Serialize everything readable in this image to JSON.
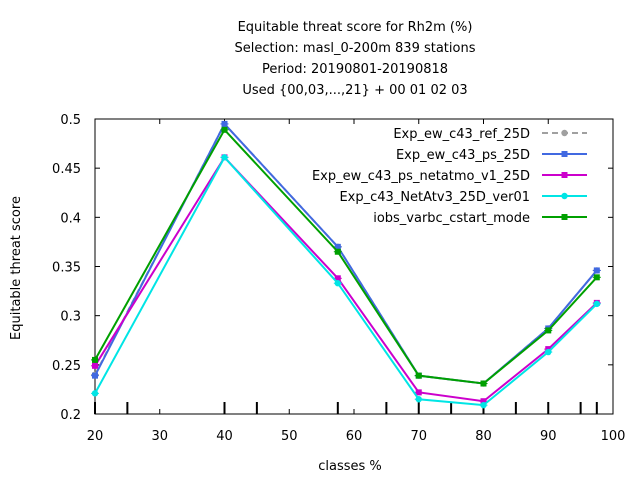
{
  "chart_data": {
    "type": "line",
    "title": "Equitable threat score  for Rh2m (%)",
    "subtitle_lines": [
      "Selection: masl_0-200m    839 stations",
      "Period: 20190801-20190818",
      "Used {00,03,...,21} + 00 01 02 03"
    ],
    "xlabel": "classes %",
    "ylabel": "Equitable threat score",
    "xlim": [
      20,
      100
    ],
    "ylim": [
      0.2,
      0.5
    ],
    "x_ticks": [
      "20",
      "30",
      "40",
      "50",
      "60",
      "70",
      "80",
      "90",
      "100"
    ],
    "y_ticks": [
      "0.2",
      "0.25",
      "0.3",
      "0.35",
      "0.4",
      "0.45",
      "0.5"
    ],
    "legend_position": "top-right",
    "x": [
      20,
      40,
      57.5,
      70,
      80,
      90,
      97.5
    ],
    "series": [
      {
        "name": "Exp_ew_c43_ref_25D",
        "color": "#a0a0a0",
        "dashed": true,
        "marker": "circle",
        "values": [
          0.24,
          0.495,
          0.37,
          0.239,
          0.231,
          0.287,
          0.346
        ]
      },
      {
        "name": "Exp_ew_c43_ps_25D",
        "color": "#4169e1",
        "dashed": false,
        "marker": "square",
        "values": [
          0.239,
          0.495,
          0.37,
          0.239,
          0.231,
          0.287,
          0.346
        ]
      },
      {
        "name": "Exp_ew_c43_ps_netatmo_v1_25D",
        "color": "#cc00cc",
        "dashed": false,
        "marker": "square",
        "values": [
          0.249,
          0.461,
          0.338,
          0.222,
          0.213,
          0.266,
          0.313
        ]
      },
      {
        "name": "Exp_c43_NetAtv3_25D_ver01",
        "color": "#00e5e5",
        "dashed": false,
        "marker": "circle",
        "values": [
          0.221,
          0.461,
          0.333,
          0.215,
          0.209,
          0.263,
          0.312
        ]
      },
      {
        "name": "iobs_varbc_cstart_mode",
        "color": "#00a000",
        "dashed": false,
        "marker": "square",
        "values": [
          0.255,
          0.489,
          0.365,
          0.239,
          0.231,
          0.285,
          0.339
        ]
      }
    ]
  }
}
